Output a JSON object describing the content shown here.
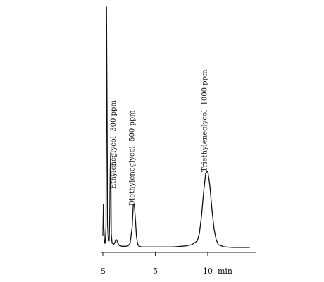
{
  "chart_data": {
    "type": "line",
    "title": "",
    "xlabel": "",
    "ylabel": "",
    "x_axis": {
      "range": [
        0,
        14.5
      ],
      "ticks": [
        {
          "value": 0,
          "label": "S"
        },
        {
          "value": 5,
          "label": "5"
        },
        {
          "value": 10,
          "label": "10"
        }
      ],
      "unit_label": "min"
    },
    "y_range": [
      0,
      1.0
    ],
    "grid": false,
    "legend": "none",
    "series": [
      {
        "x": [
          0.0,
          0.05,
          0.1,
          0.15,
          0.2,
          0.25,
          0.3,
          0.35,
          0.4,
          0.45,
          0.5,
          0.55,
          0.6,
          0.65,
          0.7,
          0.75,
          0.8,
          0.85,
          0.9,
          0.95,
          1.0,
          1.1,
          1.2,
          1.3,
          1.4,
          1.5,
          1.6,
          1.7,
          1.8,
          2.0,
          2.2,
          2.4,
          2.6,
          2.8,
          2.9,
          3.0,
          3.1,
          3.2,
          3.3,
          3.4,
          3.5,
          3.6,
          3.8,
          4.0,
          4.5,
          5.0,
          5.5,
          6.0,
          6.5,
          7.0,
          7.5,
          8.0,
          8.5,
          9.0,
          9.2,
          9.4,
          9.6,
          9.8,
          10.0,
          10.2,
          10.4,
          10.6,
          10.8,
          11.0,
          11.5,
          12.0,
          12.5,
          13.0,
          13.5,
          14.0
        ],
        "y": [
          0.05,
          0.18,
          0.08,
          0.03,
          0.02,
          0.04,
          0.09,
          1.0,
          0.55,
          0.1,
          0.05,
          0.04,
          0.03,
          0.12,
          0.32,
          0.4,
          0.06,
          0.03,
          0.02,
          0.02,
          0.015,
          0.02,
          0.03,
          0.035,
          0.025,
          0.015,
          0.01,
          0.01,
          0.008,
          0.008,
          0.008,
          0.01,
          0.02,
          0.09,
          0.18,
          0.18,
          0.12,
          0.05,
          0.02,
          0.01,
          0.008,
          0.006,
          0.005,
          0.005,
          0.005,
          0.005,
          0.005,
          0.005,
          0.005,
          0.006,
          0.008,
          0.01,
          0.015,
          0.03,
          0.06,
          0.13,
          0.23,
          0.31,
          0.32,
          0.26,
          0.16,
          0.08,
          0.035,
          0.015,
          0.006,
          0.004,
          0.003,
          0.003,
          0.003,
          0.003
        ]
      }
    ],
    "annotations": [
      {
        "x": 1.2,
        "text": "Ethyleneglycol  300 ppm"
      },
      {
        "x": 3.0,
        "text": "Diethyleneglycol  500 ppm"
      },
      {
        "x": 9.9,
        "text": "Triethyleneglycol  1000 ppm"
      }
    ]
  }
}
